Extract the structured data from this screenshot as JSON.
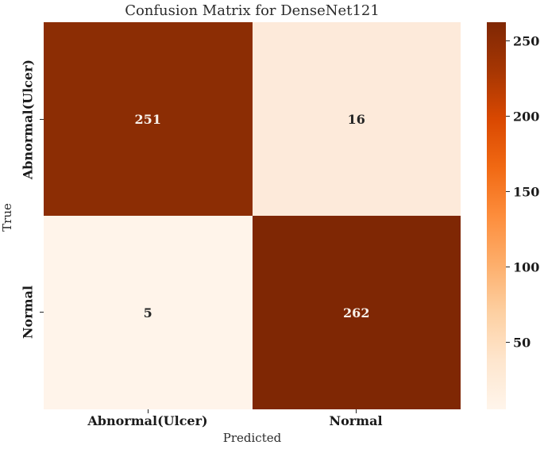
{
  "chart_data": {
    "type": "heatmap",
    "title": "Confusion Matrix for DenseNet121",
    "xlabel": "Predicted",
    "ylabel": "True",
    "x_ticklabels": [
      "Abnormal(Ulcer)",
      "Normal"
    ],
    "y_ticklabels": [
      "Abnormal(Ulcer)",
      "Normal"
    ],
    "matrix": [
      [
        251,
        16
      ],
      [
        5,
        262
      ]
    ],
    "cell_colors": [
      [
        "#8c2d04",
        "#fdeada"
      ],
      [
        "#fff4ea",
        "#7f2704"
      ]
    ],
    "cell_text_colors": [
      [
        "#f8f2ec",
        "#262626"
      ],
      [
        "#262626",
        "#f8f2ec"
      ]
    ],
    "colormap": "Oranges",
    "grid": false,
    "colorbar": {
      "position": "right",
      "min": 5,
      "max": 262,
      "ticks": [
        50,
        100,
        150,
        200,
        250
      ],
      "gradient_stops": [
        "#fff5eb",
        "#fee6ce",
        "#fdd0a2",
        "#fdae6b",
        "#fd8d3c",
        "#f16913",
        "#d94801",
        "#a63603",
        "#7f2704"
      ]
    }
  }
}
